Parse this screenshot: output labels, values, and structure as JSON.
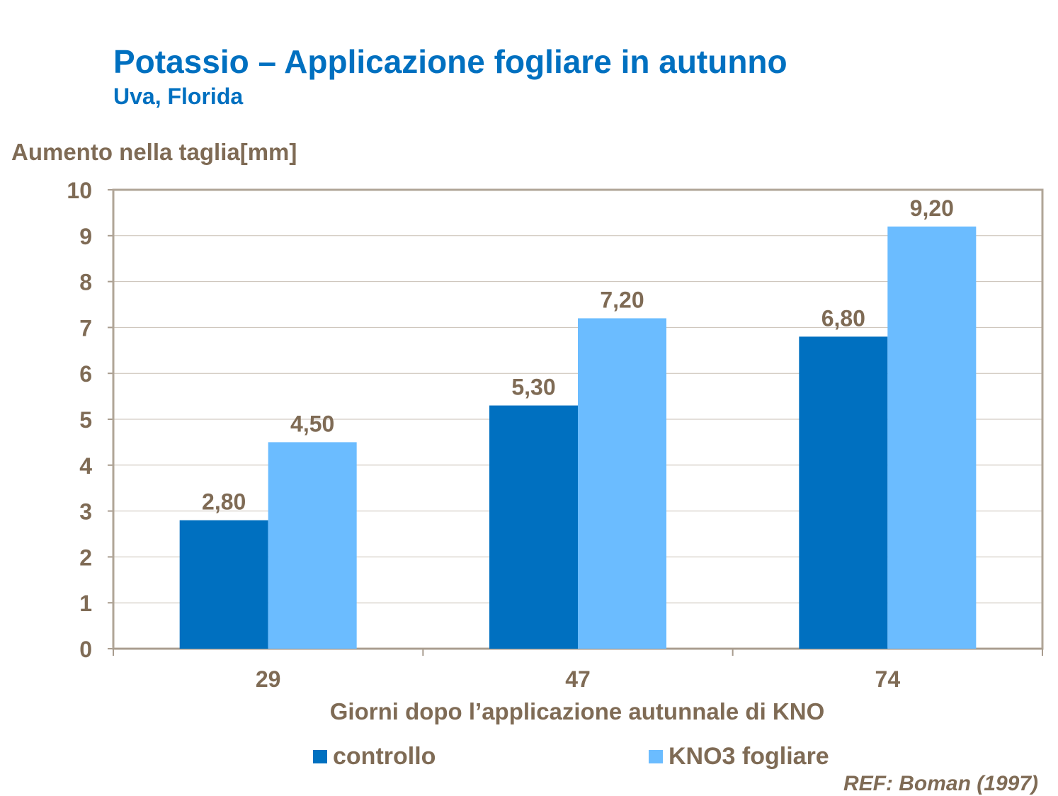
{
  "title": "Potassio – Applicazione fogliare in autunno",
  "subtitle": "Uva, Florida",
  "reference": "REF: Boman (1997)",
  "colors": {
    "text": "#7f6b55",
    "controllo": "#0070c0",
    "kno3": "#6bbcff",
    "title": "#0070c0",
    "grid": "#c8bfb4"
  },
  "chart_data": {
    "type": "bar",
    "title": "Potassio – Applicazione fogliare in autunno",
    "xlabel": "Giorni dopo l’applicazione autunnale di KNO",
    "ylabel": "Aumento nella taglia[mm]",
    "categories": [
      "29",
      "47",
      "74"
    ],
    "series": [
      {
        "name": "controllo",
        "values": [
          2.8,
          5.3,
          6.8
        ],
        "labels": [
          "2,80",
          "5,30",
          "6,80"
        ]
      },
      {
        "name": "KNO3 fogliare",
        "values": [
          4.5,
          7.2,
          9.2
        ],
        "labels": [
          "4,50",
          "7,20",
          "9,20"
        ]
      }
    ],
    "ylim": [
      0,
      10
    ],
    "yticks": [
      "0",
      "1",
      "2",
      "3",
      "4",
      "5",
      "6",
      "7",
      "8",
      "9",
      "10"
    ],
    "grid": true,
    "legend": "bottom"
  }
}
